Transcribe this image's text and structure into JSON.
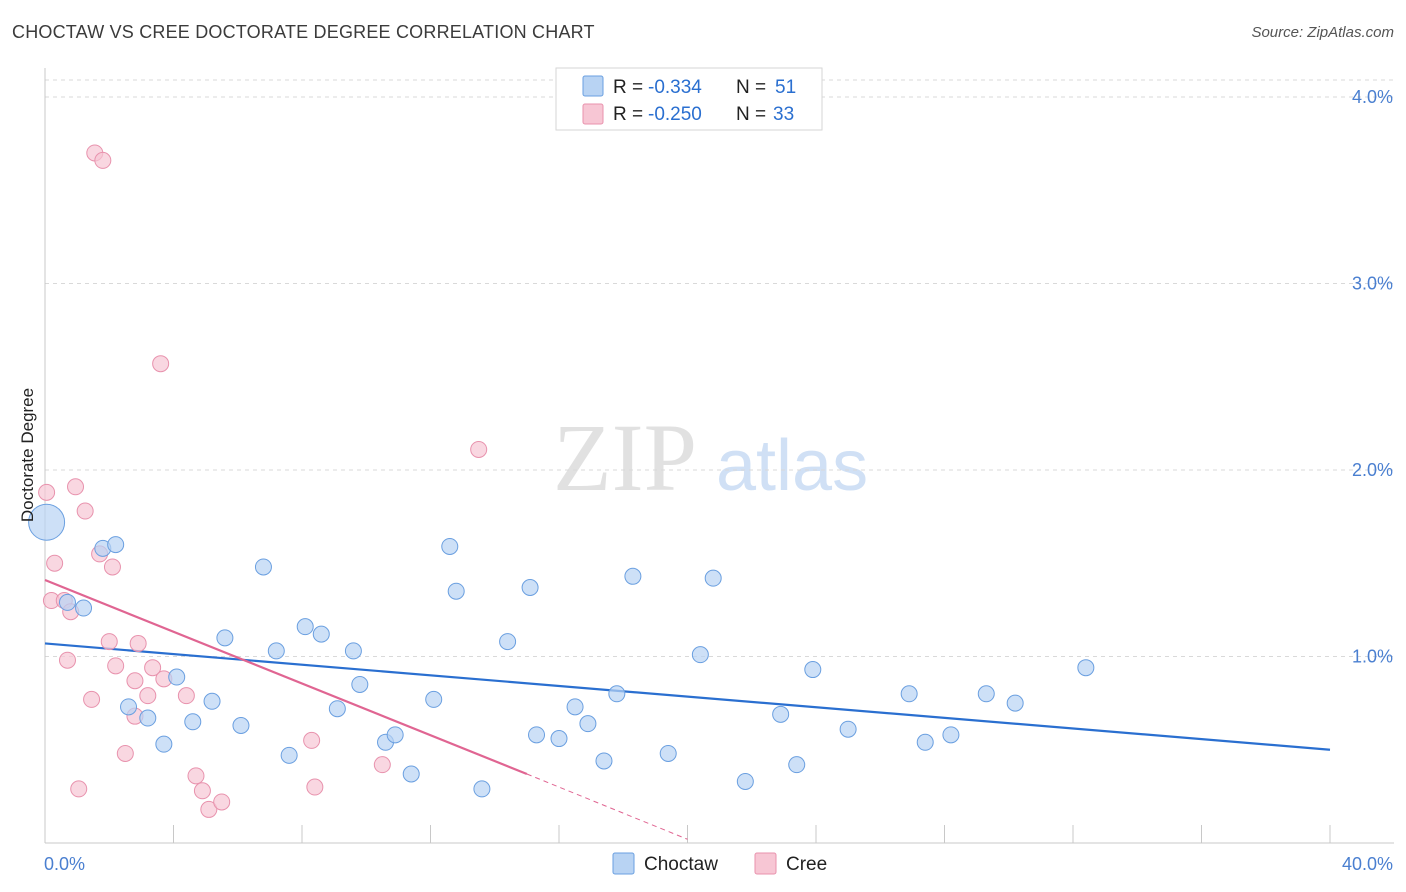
{
  "title": "CHOCTAW VS CREE DOCTORATE DEGREE CORRELATION CHART",
  "source": "Source: ZipAtlas.com",
  "colors": {
    "choctaw_fill": "#b8d3f3",
    "choctaw_stroke": "#6a9fe0",
    "choctaw_line": "#2a6fd0",
    "cree_fill": "#f7c6d4",
    "cree_stroke": "#e892ad",
    "cree_line": "#e06592",
    "value_text": "#2a6fd0",
    "grid": "#d9d9d9",
    "watermark_zip": "#c9c9c9",
    "watermark_atlas": "#aac8ee"
  },
  "legend_top": {
    "rows": [
      {
        "r_label": "R =",
        "r_value": "-0.334",
        "n_label": "N =",
        "n_value": "51"
      },
      {
        "r_label": "R =",
        "r_value": "-0.250",
        "n_label": "N =",
        "n_value": "33"
      }
    ]
  },
  "legend_bottom": [
    "Choctaw",
    "Cree"
  ],
  "watermark": {
    "zip": "ZIP",
    "atlas": "atlas"
  },
  "chart_data": {
    "type": "scatter",
    "title": "CHOCTAW VS CREE DOCTORATE DEGREE CORRELATION CHART",
    "xlabel": "",
    "ylabel": "Doctorate Degree",
    "xlim": [
      0,
      40
    ],
    "ylim": [
      0,
      4.0
    ],
    "x_tick_labels": [
      "0.0%",
      "40.0%"
    ],
    "y_ticks": [
      1.0,
      2.0,
      3.0,
      4.0
    ],
    "y_tick_labels": [
      "1.0%",
      "2.0%",
      "3.0%",
      "4.0%"
    ],
    "grid": "horizontal dashed",
    "legend": "top-center",
    "series": [
      {
        "name": "Choctaw",
        "r": -0.334,
        "n": 51,
        "trend": {
          "x": [
            0,
            40
          ],
          "y": [
            1.07,
            0.5
          ]
        },
        "points": [
          [
            0.05,
            1.72
          ],
          [
            0.7,
            1.29
          ],
          [
            1.2,
            1.26
          ],
          [
            1.8,
            1.58
          ],
          [
            2.2,
            1.6
          ],
          [
            2.6,
            0.73
          ],
          [
            3.2,
            0.67
          ],
          [
            3.7,
            0.53
          ],
          [
            4.1,
            0.89
          ],
          [
            4.6,
            0.65
          ],
          [
            5.2,
            0.76
          ],
          [
            5.6,
            1.1
          ],
          [
            6.1,
            0.63
          ],
          [
            6.8,
            1.48
          ],
          [
            7.2,
            1.03
          ],
          [
            7.6,
            0.47
          ],
          [
            8.1,
            1.16
          ],
          [
            8.6,
            1.12
          ],
          [
            9.1,
            0.72
          ],
          [
            9.6,
            1.03
          ],
          [
            9.8,
            0.85
          ],
          [
            10.6,
            0.54
          ],
          [
            10.9,
            0.58
          ],
          [
            11.4,
            0.37
          ],
          [
            12.1,
            0.77
          ],
          [
            12.6,
            1.59
          ],
          [
            12.8,
            1.35
          ],
          [
            13.6,
            0.29
          ],
          [
            14.4,
            1.08
          ],
          [
            15.1,
            1.37
          ],
          [
            15.3,
            0.58
          ],
          [
            16.0,
            0.56
          ],
          [
            16.5,
            0.73
          ],
          [
            16.9,
            0.64
          ],
          [
            17.4,
            0.44
          ],
          [
            17.8,
            0.8
          ],
          [
            18.3,
            1.43
          ],
          [
            19.4,
            0.48
          ],
          [
            20.4,
            1.01
          ],
          [
            20.8,
            1.42
          ],
          [
            21.8,
            0.33
          ],
          [
            22.9,
            0.69
          ],
          [
            23.4,
            0.42
          ],
          [
            23.9,
            0.93
          ],
          [
            25.0,
            0.61
          ],
          [
            26.9,
            0.8
          ],
          [
            27.4,
            0.54
          ],
          [
            28.2,
            0.58
          ],
          [
            29.3,
            0.8
          ],
          [
            30.2,
            0.75
          ],
          [
            32.4,
            0.94
          ]
        ]
      },
      {
        "name": "Cree",
        "r": -0.25,
        "n": 33,
        "trend": {
          "x": [
            0,
            15.0
          ],
          "y": [
            1.41,
            0.37
          ]
        },
        "trend_dashed": {
          "x": [
            15.0,
            20.0
          ],
          "y": [
            0.37,
            0.02
          ]
        },
        "points": [
          [
            0.05,
            1.88
          ],
          [
            0.3,
            1.5
          ],
          [
            0.2,
            1.3
          ],
          [
            0.6,
            1.3
          ],
          [
            0.8,
            1.24
          ],
          [
            0.7,
            0.98
          ],
          [
            0.95,
            1.91
          ],
          [
            1.05,
            0.29
          ],
          [
            1.25,
            1.78
          ],
          [
            1.45,
            0.77
          ],
          [
            1.55,
            3.7
          ],
          [
            1.8,
            3.66
          ],
          [
            1.7,
            1.55
          ],
          [
            2.0,
            1.08
          ],
          [
            2.1,
            1.48
          ],
          [
            2.2,
            0.95
          ],
          [
            2.5,
            0.48
          ],
          [
            2.8,
            0.87
          ],
          [
            2.8,
            0.68
          ],
          [
            2.9,
            1.07
          ],
          [
            3.2,
            0.79
          ],
          [
            3.35,
            0.94
          ],
          [
            3.6,
            2.57
          ],
          [
            3.7,
            0.88
          ],
          [
            4.4,
            0.79
          ],
          [
            4.7,
            0.36
          ],
          [
            4.9,
            0.28
          ],
          [
            5.1,
            0.18
          ],
          [
            5.5,
            0.22
          ],
          [
            8.3,
            0.55
          ],
          [
            8.4,
            0.3
          ],
          [
            10.5,
            0.42
          ],
          [
            13.5,
            2.11
          ]
        ]
      }
    ]
  }
}
